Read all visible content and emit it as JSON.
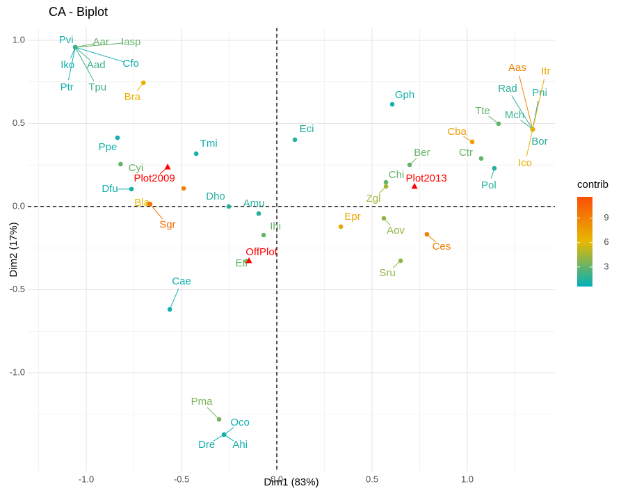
{
  "chart_data": {
    "type": "biplot",
    "title": "CA - Biplot",
    "x_label": "Dim1 (83%)",
    "y_label": "Dim2 (17%)",
    "xlim": [
      -1.307,
      1.46
    ],
    "ylim": [
      -1.594,
      1.075
    ],
    "xticks": [
      {
        "value": -1,
        "label": "-1.0"
      },
      {
        "value": -0.5,
        "label": "-0.5"
      },
      {
        "value": 0,
        "label": "0.0"
      },
      {
        "value": 0.5,
        "label": "0.5"
      },
      {
        "value": 1,
        "label": "1.0"
      }
    ],
    "yticks": [
      {
        "value": -1,
        "label": "-1.0"
      },
      {
        "value": -0.5,
        "label": "-0.5"
      },
      {
        "value": 0,
        "label": "0.0"
      },
      {
        "value": 0.5,
        "label": "0.5"
      },
      {
        "value": 1,
        "label": "1.0"
      }
    ],
    "grid": true,
    "hlines": [
      0
    ],
    "vlines": [
      0
    ],
    "columns": {
      "labels": [
        "Pvi",
        "Aar",
        "Iasp",
        "Iko",
        "Aad",
        "Cfo",
        "Ptr",
        "Tpu",
        "Bra",
        "Ppe",
        "Cyi",
        "Dfu",
        "Bla",
        "Sgr",
        null,
        "Tmi",
        "Dho",
        "Amu",
        "Ihi",
        "Eti",
        "Cae",
        "Pma",
        "Oco",
        "Dre",
        "Ahi",
        "Eci",
        "Gph",
        "Ber",
        "Chi",
        "Zgl",
        "Epr",
        "Aov",
        "Sru",
        "Ces",
        "Cba",
        "Ctr",
        "Pol",
        "Tte",
        "Mch",
        "Rad",
        "Pni",
        "Aas",
        "Itr",
        "Bor",
        "Ico"
      ],
      "x": [
        -1.058,
        -1.058,
        -1.058,
        -1.058,
        -1.058,
        -1.058,
        -1.058,
        -1.058,
        -0.7,
        -0.836,
        -0.82,
        -0.763,
        -0.675,
        -0.665,
        -0.489,
        -0.423,
        -0.252,
        -0.095,
        -0.069,
        -0.16,
        -0.562,
        -0.303,
        -0.277,
        -0.277,
        -0.277,
        0.095,
        0.606,
        0.697,
        0.573,
        0.573,
        0.336,
        0.562,
        0.65,
        0.788,
        1.026,
        1.073,
        1.142,
        1.164,
        1.343,
        1.343,
        1.343,
        1.343,
        1.343,
        1.343,
        1.343
      ],
      "y": [
        0.958,
        0.958,
        0.958,
        0.958,
        0.958,
        0.958,
        0.958,
        0.958,
        0.745,
        0.414,
        0.255,
        0.105,
        0.017,
        0.015,
        0.109,
        0.318,
        0,
        -0.042,
        -0.172,
        -0.33,
        -0.619,
        -1.28,
        -1.372,
        -1.372,
        -1.372,
        0.402,
        0.615,
        0.251,
        0.146,
        0.121,
        -0.121,
        -0.071,
        -0.326,
        -0.167,
        0.389,
        0.289,
        0.23,
        0.498,
        0.464,
        0.464,
        0.464,
        0.464,
        0.464,
        0.464,
        0.464
      ],
      "contrib": [
        1,
        3,
        3,
        1,
        2,
        1,
        1,
        2,
        6.5,
        1,
        3,
        1,
        6,
        10,
        9,
        1,
        1.5,
        1.5,
        3,
        3,
        1,
        3.5,
        1,
        1,
        1,
        1.5,
        1,
        3,
        3,
        4.5,
        7,
        4,
        4,
        9,
        7.5,
        3,
        1.5,
        3,
        2,
        1.5,
        1.5,
        9,
        7,
        1.5,
        6.5
      ]
    },
    "rows": {
      "labels": [
        "Plot2009",
        "OffPlot",
        "Plot2013"
      ],
      "x": [
        -0.573,
        -0.146,
        0.723
      ],
      "y": [
        0.238,
        -0.326,
        0.121
      ],
      "color": "#ff0000"
    },
    "color_scale": {
      "title": "contrib",
      "colors": [
        "#00AFBB",
        "#E7B800",
        "#FC4E07"
      ],
      "lim": [
        0.6,
        11.6
      ],
      "ticks": [
        3,
        6,
        9
      ]
    }
  }
}
